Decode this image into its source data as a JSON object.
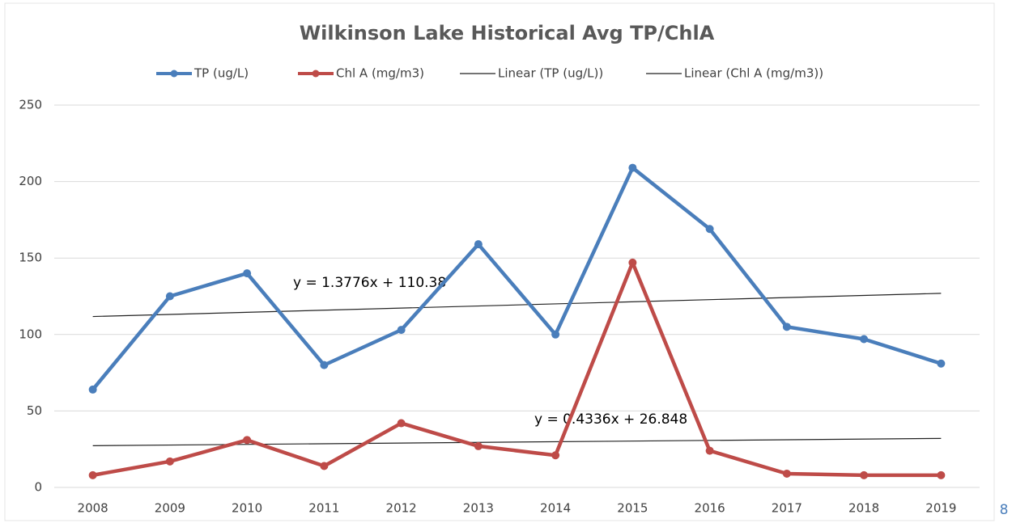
{
  "chart_data": {
    "type": "line",
    "title": "Wilkinson Lake Historical Avg TP/ChlA",
    "categories": [
      "2008",
      "2009",
      "2010",
      "2011",
      "2012",
      "2013",
      "2014",
      "2015",
      "2016",
      "2017",
      "2018",
      "2019"
    ],
    "series": [
      {
        "name": "TP (ug/L)",
        "color": "#4a7ebb",
        "values": [
          64,
          125,
          140,
          80,
          103,
          159,
          100,
          209,
          169,
          105,
          97,
          81
        ]
      },
      {
        "name": "Chl A (mg/m3)",
        "color": "#be4b48",
        "values": [
          8,
          17,
          31,
          14,
          42,
          27,
          21,
          147,
          24,
          9,
          8,
          8
        ]
      }
    ],
    "trendlines": [
      {
        "name": "Linear (TP (ug/L))",
        "color": "#222222",
        "slope": 1.3776,
        "intercept": 110.38,
        "label": "y = 1.3776x + 110.38"
      },
      {
        "name": "Linear (Chl A (mg/m3))",
        "color": "#222222",
        "slope": 0.4336,
        "intercept": 26.848,
        "label": "y = 0.4336x + 26.848"
      }
    ],
    "ylim": [
      0,
      250
    ],
    "yticks": [
      0,
      50,
      100,
      150,
      200,
      250
    ],
    "grid": true,
    "legend": "top",
    "page_number": "8"
  }
}
